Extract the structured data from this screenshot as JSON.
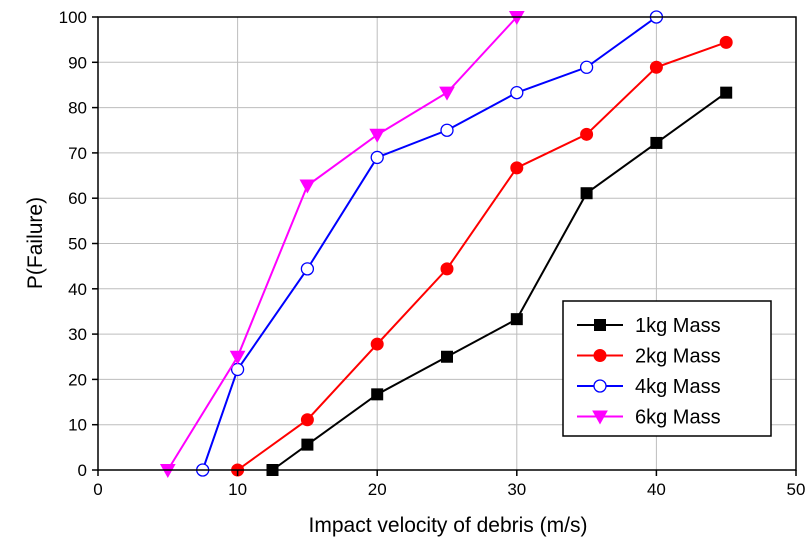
{
  "chart_data": {
    "type": "line",
    "title": "",
    "xlabel": "Impact velocity of debris (m/s)",
    "ylabel": "P(Failure)",
    "xlim": [
      0,
      50
    ],
    "ylim": [
      0,
      100
    ],
    "x_ticks": [
      "0",
      "10",
      "20",
      "30",
      "40",
      "50"
    ],
    "y_ticks": [
      "0",
      "10",
      "20",
      "30",
      "40",
      "50",
      "60",
      "70",
      "80",
      "90",
      "100"
    ],
    "grid": true,
    "legend_position": "bottom-right",
    "series": [
      {
        "name": "1kg Mass",
        "color": "#000000",
        "marker": "square-filled",
        "points": [
          [
            12.5,
            0
          ],
          [
            15,
            5.6
          ],
          [
            20,
            16.7
          ],
          [
            25,
            25
          ],
          [
            30,
            33.3
          ],
          [
            35,
            61.1
          ],
          [
            40,
            72.2
          ],
          [
            45,
            83.3
          ]
        ]
      },
      {
        "name": "2kg Mass",
        "color": "#ff0000",
        "marker": "circle-filled",
        "points": [
          [
            10,
            0
          ],
          [
            15,
            11.1
          ],
          [
            20,
            27.8
          ],
          [
            25,
            44.4
          ],
          [
            30,
            66.7
          ],
          [
            35,
            74.1
          ],
          [
            40,
            88.9
          ],
          [
            45,
            94.4
          ]
        ]
      },
      {
        "name": "4kg Mass",
        "color": "#0000ff",
        "marker": "circle-open",
        "points": [
          [
            7.5,
            0
          ],
          [
            10,
            22.2
          ],
          [
            15,
            44.4
          ],
          [
            20,
            69
          ],
          [
            25,
            75
          ],
          [
            30,
            83.3
          ],
          [
            35,
            88.9
          ],
          [
            40,
            100
          ]
        ]
      },
      {
        "name": "6kg Mass",
        "color": "#ff00ff",
        "marker": "triangle-down-filled",
        "points": [
          [
            5,
            0
          ],
          [
            10,
            25
          ],
          [
            15,
            62.8
          ],
          [
            20,
            74
          ],
          [
            25,
            83.3
          ],
          [
            30,
            100
          ]
        ]
      }
    ]
  }
}
